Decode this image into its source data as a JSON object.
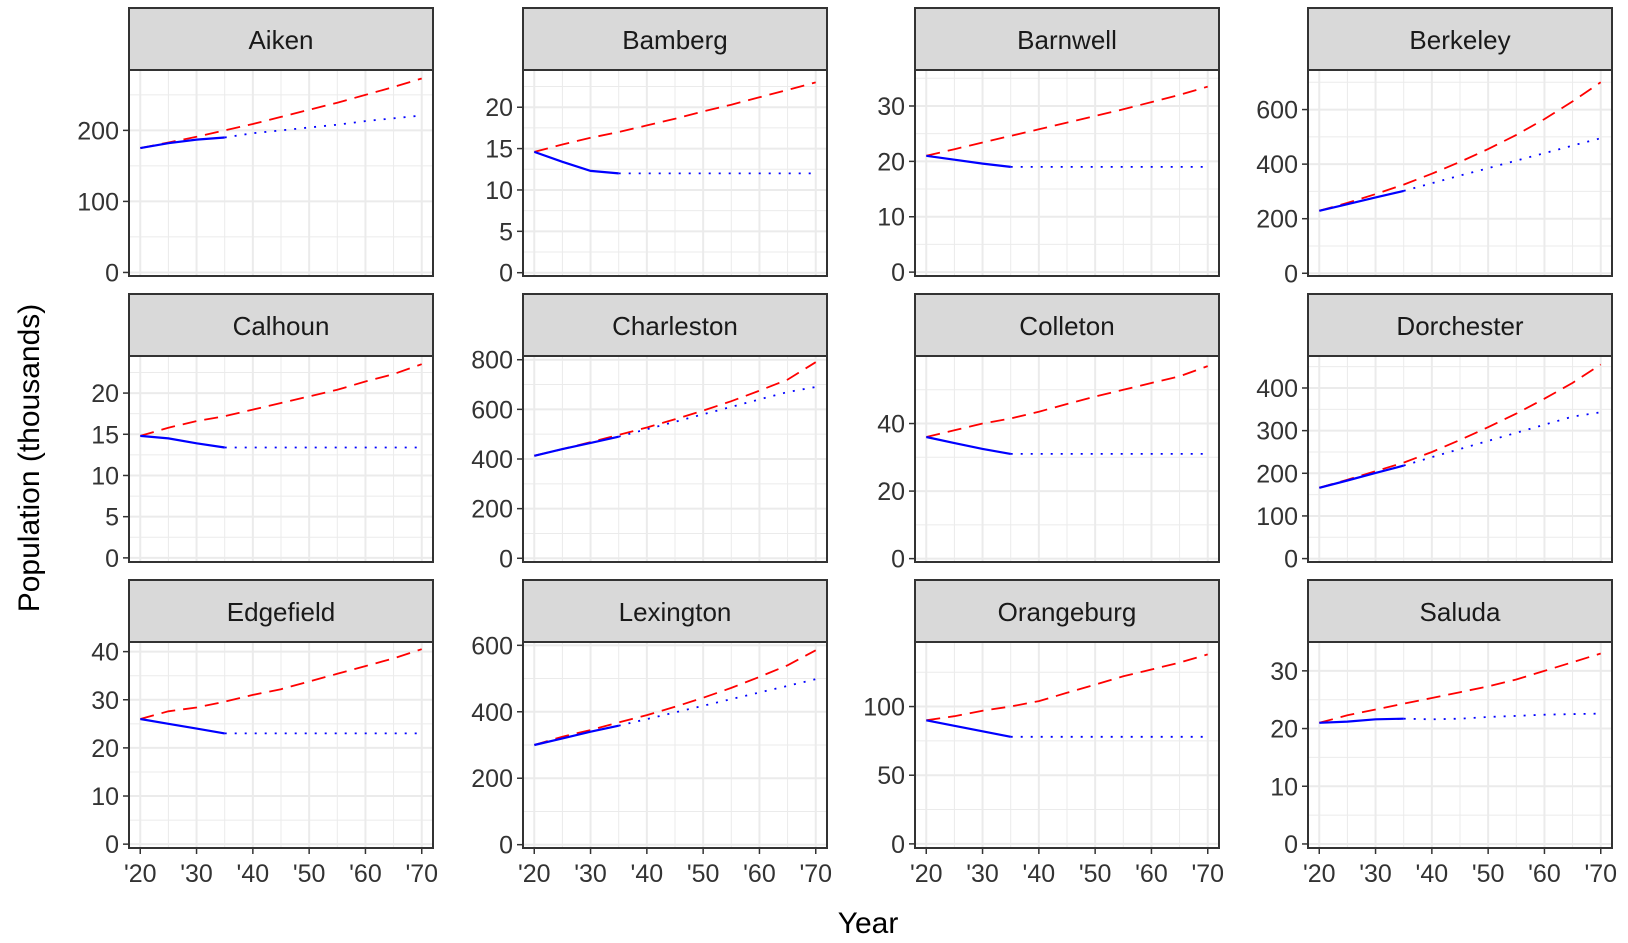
{
  "colors": {
    "background": "#ffffff",
    "panel_background": "#ffffff",
    "panel_border": "#333333",
    "grid": "#ebebeb",
    "strip_fill": "#d9d9d9",
    "series": [
      "#ff0000",
      "#0000ff",
      "#0000ff"
    ]
  },
  "chart_data": {
    "type": "line",
    "layout": "facet-grid 3x4",
    "grid": true,
    "legend": "none",
    "xlabel": "Year",
    "ylabel": "Population (thousands)",
    "x_ticks": [
      20,
      30,
      40,
      50,
      60,
      70
    ],
    "x_tick_labels": [
      "'20",
      "'30",
      "'40",
      "'50",
      "'60",
      "'70"
    ],
    "xlim": [
      18,
      72
    ],
    "series_styles": [
      {
        "key": "dashed_red",
        "color": "#ff0000",
        "dash": "dashed"
      },
      {
        "key": "solid_blue",
        "color": "#0000ff",
        "dash": "solid"
      },
      {
        "key": "dotted_blue",
        "color": "#0000ff",
        "dash": "dotted"
      }
    ],
    "panels": [
      {
        "title": "Aiken",
        "ylim": [
          -5,
          285
        ],
        "y_ticks": [
          0,
          100,
          200
        ],
        "y_tick_labels": [
          "0",
          "100",
          "200"
        ],
        "x": [
          20,
          25,
          30,
          35,
          40,
          45,
          50,
          55,
          60,
          65,
          70
        ],
        "dashed_red": [
          175,
          183,
          191,
          200,
          209,
          219,
          229,
          239,
          250,
          261,
          273
        ],
        "solid_blue": [
          175,
          182,
          187,
          190,
          null,
          null,
          null,
          null,
          null,
          null,
          null
        ],
        "dotted_blue": [
          null,
          null,
          null,
          190,
          196,
          200,
          204,
          208,
          213,
          217,
          221
        ]
      },
      {
        "title": "Bamberg",
        "ylim": [
          -0.4,
          24.5
        ],
        "y_ticks": [
          0,
          5,
          10,
          15,
          20
        ],
        "y_tick_labels": [
          "0",
          "5",
          "10",
          "15",
          "20"
        ],
        "x": [
          20,
          25,
          30,
          35,
          40,
          45,
          50,
          55,
          60,
          65,
          70
        ],
        "dashed_red": [
          14.6,
          15.5,
          16.3,
          17.0,
          17.8,
          18.6,
          19.5,
          20.3,
          21.2,
          22.1,
          23.0
        ],
        "solid_blue": [
          14.6,
          13.4,
          12.3,
          12.0,
          null,
          null,
          null,
          null,
          null,
          null,
          null
        ],
        "dotted_blue": [
          null,
          null,
          null,
          12.0,
          12.0,
          12.0,
          12.0,
          12.0,
          12.0,
          12.0,
          12.0
        ]
      },
      {
        "title": "Barnwell",
        "ylim": [
          -0.7,
          36.5
        ],
        "y_ticks": [
          0,
          10,
          20,
          30
        ],
        "y_tick_labels": [
          "0",
          "10",
          "20",
          "30"
        ],
        "x": [
          20,
          25,
          30,
          35,
          40,
          45,
          50,
          55,
          60,
          65,
          70
        ],
        "dashed_red": [
          21.0,
          22.2,
          23.4,
          24.6,
          25.8,
          27.0,
          28.2,
          29.4,
          30.7,
          32.0,
          33.5
        ],
        "solid_blue": [
          21.0,
          20.3,
          19.6,
          19.0,
          null,
          null,
          null,
          null,
          null,
          null,
          null
        ],
        "dotted_blue": [
          null,
          null,
          null,
          19.0,
          19.0,
          19.0,
          19.0,
          19.0,
          19.0,
          19.0,
          19.0
        ]
      },
      {
        "title": "Berkeley",
        "ylim": [
          -10,
          745
        ],
        "y_ticks": [
          0,
          200,
          400,
          600
        ],
        "y_tick_labels": [
          "0",
          "200",
          "400",
          "600"
        ],
        "x": [
          20,
          25,
          30,
          35,
          40,
          45,
          50,
          55,
          60,
          65,
          70
        ],
        "dashed_red": [
          229,
          258,
          290,
          325,
          365,
          408,
          455,
          507,
          565,
          630,
          700
        ],
        "solid_blue": [
          229,
          253,
          278,
          302,
          null,
          null,
          null,
          null,
          null,
          null,
          null
        ],
        "dotted_blue": [
          null,
          null,
          null,
          302,
          330,
          358,
          385,
          413,
          440,
          468,
          495
        ]
      },
      {
        "title": "Calhoun",
        "ylim": [
          -0.5,
          24.5
        ],
        "y_ticks": [
          0,
          5,
          10,
          15,
          20
        ],
        "y_tick_labels": [
          "0",
          "5",
          "10",
          "15",
          "20"
        ],
        "x": [
          20,
          25,
          30,
          35,
          40,
          45,
          50,
          55,
          60,
          65,
          70
        ],
        "dashed_red": [
          14.8,
          15.8,
          16.6,
          17.2,
          18.0,
          18.8,
          19.6,
          20.4,
          21.4,
          22.3,
          23.5
        ],
        "solid_blue": [
          14.8,
          14.5,
          13.9,
          13.4,
          null,
          null,
          null,
          null,
          null,
          null,
          null
        ],
        "dotted_blue": [
          null,
          null,
          null,
          13.4,
          13.4,
          13.4,
          13.4,
          13.4,
          13.4,
          13.4,
          13.4
        ]
      },
      {
        "title": "Charleston",
        "ylim": [
          -15,
          815
        ],
        "y_ticks": [
          0,
          200,
          400,
          600,
          800
        ],
        "y_tick_labels": [
          "0",
          "200",
          "400",
          "600",
          "800"
        ],
        "x": [
          20,
          25,
          30,
          35,
          40,
          45,
          50,
          55,
          60,
          65,
          70
        ],
        "dashed_red": [
          413,
          440,
          468,
          497,
          527,
          560,
          595,
          633,
          675,
          720,
          790
        ],
        "solid_blue": [
          413,
          440,
          465,
          490,
          null,
          null,
          null,
          null,
          null,
          null,
          null
        ],
        "dotted_blue": [
          null,
          null,
          null,
          490,
          520,
          550,
          580,
          610,
          640,
          670,
          690
        ]
      },
      {
        "title": "Colleton",
        "ylim": [
          -1,
          60
        ],
        "y_ticks": [
          0,
          20,
          40
        ],
        "y_tick_labels": [
          "0",
          "20",
          "40"
        ],
        "x": [
          20,
          25,
          30,
          35,
          40,
          45,
          50,
          55,
          60,
          65,
          70
        ],
        "dashed_red": [
          36.0,
          38.0,
          40.0,
          41.5,
          43.5,
          45.8,
          48.0,
          50.0,
          52.0,
          54.0,
          57.0
        ],
        "solid_blue": [
          36.0,
          34.2,
          32.5,
          31.0,
          null,
          null,
          null,
          null,
          null,
          null,
          null
        ],
        "dotted_blue": [
          null,
          null,
          null,
          31.0,
          31.0,
          31.0,
          31.0,
          31.0,
          31.0,
          31.0,
          31.0
        ]
      },
      {
        "title": "Dorchester",
        "ylim": [
          -8,
          475
        ],
        "y_ticks": [
          0,
          100,
          200,
          300,
          400
        ],
        "y_tick_labels": [
          "0",
          "100",
          "200",
          "300",
          "400"
        ],
        "x": [
          20,
          25,
          30,
          35,
          40,
          45,
          50,
          55,
          60,
          65,
          70
        ],
        "dashed_red": [
          166,
          185,
          205,
          225,
          250,
          278,
          308,
          340,
          375,
          412,
          455
        ],
        "solid_blue": [
          166,
          183,
          201,
          218,
          null,
          null,
          null,
          null,
          null,
          null,
          null
        ],
        "dotted_blue": [
          null,
          null,
          null,
          218,
          238,
          257,
          276,
          295,
          314,
          333,
          343
        ]
      },
      {
        "title": "Edgefield",
        "ylim": [
          -0.8,
          42
        ],
        "y_ticks": [
          0,
          10,
          20,
          30,
          40
        ],
        "y_tick_labels": [
          "0",
          "10",
          "20",
          "30",
          "40"
        ],
        "x": [
          20,
          25,
          30,
          35,
          40,
          45,
          50,
          55,
          60,
          65,
          70
        ],
        "dashed_red": [
          26.0,
          27.6,
          28.4,
          29.6,
          31.0,
          32.2,
          33.8,
          35.4,
          37.0,
          38.6,
          40.5
        ],
        "solid_blue": [
          26.0,
          25.0,
          24.0,
          23.0,
          null,
          null,
          null,
          null,
          null,
          null,
          null
        ],
        "dotted_blue": [
          null,
          null,
          null,
          23.0,
          23.0,
          23.0,
          23.0,
          23.0,
          23.0,
          23.0,
          23.0
        ]
      },
      {
        "title": "Lexington",
        "ylim": [
          -10,
          610
        ],
        "y_ticks": [
          0,
          200,
          400,
          600
        ],
        "y_tick_labels": [
          "0",
          "200",
          "400",
          "600"
        ],
        "x": [
          20,
          25,
          30,
          35,
          40,
          45,
          50,
          55,
          60,
          65,
          70
        ],
        "dashed_red": [
          300,
          325,
          345,
          368,
          390,
          415,
          442,
          472,
          505,
          540,
          585
        ],
        "solid_blue": [
          300,
          320,
          340,
          358,
          null,
          null,
          null,
          null,
          null,
          null,
          null
        ],
        "dotted_blue": [
          null,
          null,
          null,
          358,
          378,
          398,
          418,
          438,
          458,
          478,
          498
        ]
      },
      {
        "title": "Orangeburg",
        "ylim": [
          -3,
          147
        ],
        "y_ticks": [
          0,
          50,
          100
        ],
        "y_tick_labels": [
          "0",
          "50",
          "100"
        ],
        "x": [
          20,
          25,
          30,
          35,
          40,
          45,
          50,
          55,
          60,
          65,
          70
        ],
        "dashed_red": [
          90,
          93,
          97,
          100,
          104,
          110,
          116,
          122,
          127,
          132,
          138
        ],
        "solid_blue": [
          90,
          86,
          82,
          78,
          null,
          null,
          null,
          null,
          null,
          null,
          null
        ],
        "dotted_blue": [
          null,
          null,
          null,
          78,
          78,
          78,
          78,
          78,
          78,
          78,
          78
        ]
      },
      {
        "title": "Saluda",
        "ylim": [
          -0.7,
          35
        ],
        "y_ticks": [
          0,
          10,
          20,
          30
        ],
        "y_tick_labels": [
          "0",
          "10",
          "20",
          "30"
        ],
        "x": [
          20,
          25,
          30,
          35,
          40,
          45,
          50,
          55,
          60,
          65,
          70
        ],
        "dashed_red": [
          21.0,
          22.3,
          23.3,
          24.3,
          25.3,
          26.3,
          27.3,
          28.5,
          30.0,
          31.5,
          33.0
        ],
        "solid_blue": [
          21.0,
          21.2,
          21.6,
          21.7,
          null,
          null,
          null,
          null,
          null,
          null,
          null
        ],
        "dotted_blue": [
          null,
          null,
          null,
          21.7,
          21.6,
          21.7,
          22.0,
          22.2,
          22.4,
          22.5,
          22.6
        ]
      }
    ]
  }
}
